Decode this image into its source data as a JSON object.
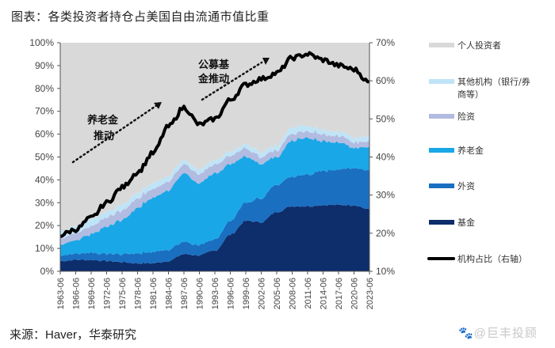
{
  "header": {
    "title": "图表：各类投资者持仓占美国自由流通市值比重"
  },
  "footer": {
    "source": "来源：Haver，华泰研究",
    "watermark": "🐾@巨丰投顾"
  },
  "chart_data": {
    "type": "area",
    "title": "各类投资者持仓占美国自由流通市值比重",
    "xlabel": "",
    "ylabel_left": "",
    "ylabel_right": "",
    "x_ticks": [
      "1963-06",
      "1966-06",
      "1969-06",
      "1972-06",
      "1975-06",
      "1978-06",
      "1981-06",
      "1984-06",
      "1987-06",
      "1990-06",
      "1993-06",
      "1996-06",
      "1999-06",
      "2002-06",
      "2005-06",
      "2008-06",
      "2011-06",
      "2014-06",
      "2017-06",
      "2020-06",
      "2023-06"
    ],
    "ylim_left": [
      0,
      100
    ],
    "ylim_right": [
      10,
      70
    ],
    "left_ticks": [
      "0%",
      "10%",
      "20%",
      "30%",
      "40%",
      "50%",
      "60%",
      "70%",
      "80%",
      "90%",
      "100%"
    ],
    "right_ticks": [
      "10%",
      "20%",
      "30%",
      "40%",
      "50%",
      "60%",
      "70%"
    ],
    "stacked": true,
    "x": [
      1963.5,
      1966.5,
      1969.5,
      1972.5,
      1975.5,
      1978.5,
      1981.5,
      1984.5,
      1987.5,
      1990.5,
      1993.5,
      1996.5,
      1999.5,
      2002.5,
      2005.5,
      2008.5,
      2011.5,
      2014.5,
      2017.5,
      2020.5,
      2023.5
    ],
    "series": [
      {
        "name": "基金",
        "color": "#0d2d6b",
        "axis": "left",
        "values": [
          4.5,
          5,
          5,
          4.5,
          4,
          3.5,
          3.5,
          4.5,
          7.5,
          7,
          9,
          16,
          22,
          21.5,
          26,
          28.5,
          28.5,
          29,
          29,
          29,
          27
        ]
      },
      {
        "name": "外资",
        "color": "#1a6fc0",
        "axis": "left",
        "values": [
          2.5,
          2.5,
          3,
          3,
          3.5,
          4.5,
          5,
          5,
          5.5,
          4.5,
          5,
          6,
          8,
          10.5,
          12,
          13,
          14,
          15,
          15.5,
          16.5,
          17
        ]
      },
      {
        "name": "养老金",
        "color": "#1aa7e8",
        "axis": "left",
        "values": [
          5,
          6,
          8,
          12,
          15,
          20,
          24,
          26,
          30,
          27,
          29,
          25,
          20,
          15,
          12,
          16,
          16,
          13,
          12,
          9,
          10
        ]
      },
      {
        "name": "险资",
        "color": "#b2bbe0",
        "axis": "left",
        "values": [
          3,
          3,
          3.5,
          4,
          4,
          4,
          4,
          4,
          4,
          4,
          4,
          3.5,
          3.5,
          3,
          3,
          3,
          3,
          3,
          3,
          2.5,
          2.5
        ]
      },
      {
        "name": "其他机构（银行/券商等）",
        "color": "#bfe4f7",
        "axis": "left",
        "values": [
          3,
          3,
          3,
          2.5,
          2.5,
          2.5,
          2.5,
          2.5,
          2,
          2,
          2,
          2,
          2,
          2,
          2,
          3,
          2.5,
          2,
          2,
          2,
          2
        ]
      },
      {
        "name": "个人投资者",
        "color": "#d9d9d9",
        "axis": "left",
        "values": [
          82,
          80.5,
          77.5,
          74,
          71,
          65.5,
          61,
          58,
          51,
          55.5,
          51,
          47.5,
          44.5,
          48,
          45,
          36.5,
          36,
          38,
          38.5,
          41,
          41.5
        ]
      }
    ],
    "line": {
      "name": "机构占比（右轴）",
      "color": "#000000",
      "axis": "right",
      "values": [
        19.5,
        21,
        24,
        28,
        32,
        36,
        41,
        48,
        53,
        48.5,
        50,
        55,
        59,
        60.5,
        62,
        66,
        67,
        65.5,
        64,
        63,
        59.5
      ]
    },
    "annotations": [
      {
        "text_line1": "养老金",
        "text_line2": "推动",
        "arrow": "dotted-up"
      },
      {
        "text_line1": "公募基",
        "text_line2": "金推动",
        "arrow": "dotted-up"
      }
    ],
    "legend": {
      "placement": "right",
      "items": [
        {
          "label": "个人投资者",
          "color": "#d9d9d9",
          "kind": "area"
        },
        {
          "label_line1": "其他机构（银行/券",
          "label_line2": "商等）",
          "color": "#bfe4f7",
          "kind": "area"
        },
        {
          "label": "险资",
          "color": "#b2bbe0",
          "kind": "area"
        },
        {
          "label": "养老金",
          "color": "#1aa7e8",
          "kind": "area"
        },
        {
          "label": "外资",
          "color": "#1a6fc0",
          "kind": "area"
        },
        {
          "label": "基金",
          "color": "#0d2d6b",
          "kind": "area"
        },
        {
          "label": "机构占比（右轴）",
          "color": "#000000",
          "kind": "line"
        }
      ]
    },
    "grid": false
  }
}
